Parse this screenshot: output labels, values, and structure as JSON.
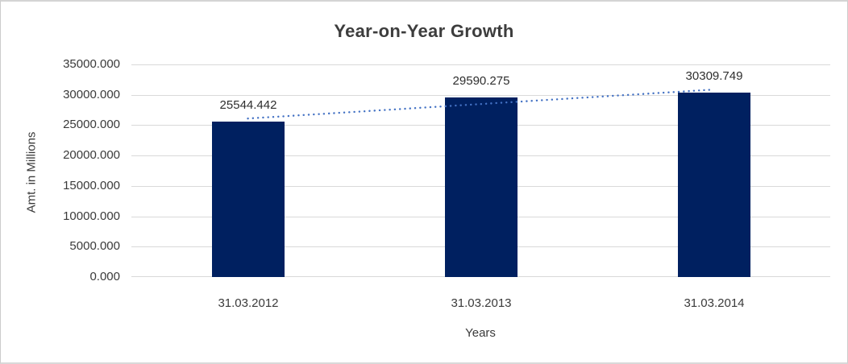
{
  "chart_data": {
    "type": "bar",
    "title": "Year-on-Year Growth",
    "xlabel": "Years",
    "ylabel": "Amt. in Millions",
    "categories": [
      "31.03.2012",
      "31.03.2013",
      "31.03.2014"
    ],
    "values": [
      25544.442,
      29590.275,
      30309.749
    ],
    "data_labels": [
      "25544.442",
      "29590.275",
      "30309.749"
    ],
    "ylim": [
      0,
      35000
    ],
    "ytick_step": 5000,
    "ytick_labels": [
      "0.000",
      "5000.000",
      "10000.000",
      "15000.000",
      "20000.000",
      "25000.000",
      "30000.000",
      "35000.000"
    ],
    "grid": true,
    "legend": false,
    "colors": {
      "bar": "#002060",
      "gridline": "#d9d9d9",
      "text": "#3a3a3a",
      "title_text": "#3d3d3d",
      "background": "#ffffff",
      "border": "#cccccc"
    },
    "trendline": {
      "type": "linear",
      "style": "dotted",
      "color": "#4472c4",
      "start_value": 26098.8,
      "end_value": 30864.1
    }
  }
}
